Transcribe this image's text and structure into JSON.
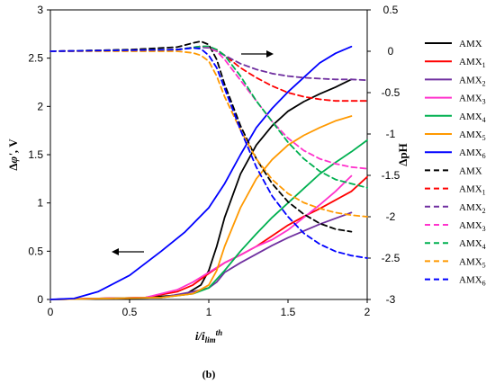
{
  "chart_data": {
    "type": "line",
    "caption": "(b)",
    "xlabel": "i/i_lim^th",
    "ylabel_left": "Δφ', V",
    "ylabel_right": "ΔpH",
    "xlim": [
      0,
      2
    ],
    "ylim_left": [
      0,
      3
    ],
    "ylim_right": [
      -3,
      0.5
    ],
    "x_ticks": [
      "0",
      "0.5",
      "1",
      "1.5",
      "2"
    ],
    "y_left_ticks": [
      "0",
      "0.5",
      "1",
      "1.5",
      "2",
      "2.5",
      "3"
    ],
    "y_right_ticks": [
      "0.5",
      "0",
      "-0.5",
      "-1",
      "-1.5",
      "-2",
      "-2.5",
      "-3"
    ],
    "legend_position": "right",
    "series": [
      {
        "name": "AMX",
        "sub": "",
        "axis": "left",
        "style": "solid",
        "color": "#000000",
        "x": [
          0,
          0.6,
          0.85,
          0.95,
          1.0,
          1.05,
          1.1,
          1.2,
          1.3,
          1.4,
          1.5,
          1.6,
          1.7,
          1.8,
          1.9
        ],
        "y": [
          0,
          0.02,
          0.05,
          0.15,
          0.3,
          0.55,
          0.85,
          1.3,
          1.6,
          1.8,
          1.95,
          2.05,
          2.13,
          2.2,
          2.28
        ]
      },
      {
        "name": "AMX",
        "sub": "1",
        "axis": "left",
        "style": "solid",
        "color": "#ff0000",
        "x": [
          0,
          0.6,
          0.8,
          0.9,
          1.0,
          1.1,
          1.2,
          1.3,
          1.4,
          1.5,
          1.6,
          1.7,
          1.8,
          1.9,
          2.0
        ],
        "y": [
          0,
          0.02,
          0.08,
          0.15,
          0.27,
          0.38,
          0.46,
          0.55,
          0.66,
          0.77,
          0.86,
          0.94,
          1.03,
          1.12,
          1.27
        ]
      },
      {
        "name": "AMX",
        "sub": "2",
        "axis": "left",
        "style": "solid",
        "color": "#7030a0",
        "x": [
          0,
          0.7,
          0.9,
          1.0,
          1.05,
          1.1,
          1.2,
          1.3,
          1.4,
          1.5,
          1.6,
          1.7,
          1.8,
          1.9
        ],
        "y": [
          0,
          0.02,
          0.08,
          0.12,
          0.18,
          0.28,
          0.38,
          0.47,
          0.56,
          0.64,
          0.71,
          0.78,
          0.84,
          0.9
        ]
      },
      {
        "name": "AMX",
        "sub": "3",
        "axis": "left",
        "style": "solid",
        "color": "#ff33cc",
        "x": [
          0,
          0.6,
          0.8,
          0.9,
          1.0,
          1.1,
          1.2,
          1.3,
          1.4,
          1.5,
          1.6,
          1.7,
          1.8,
          1.9
        ],
        "y": [
          0,
          0.02,
          0.1,
          0.18,
          0.28,
          0.38,
          0.46,
          0.55,
          0.62,
          0.72,
          0.85,
          0.98,
          1.12,
          1.28
        ]
      },
      {
        "name": "AMX",
        "sub": "4",
        "axis": "left",
        "style": "solid",
        "color": "#00b050",
        "x": [
          0,
          0.7,
          0.9,
          1.0,
          1.1,
          1.2,
          1.3,
          1.4,
          1.5,
          1.6,
          1.7,
          1.8,
          1.9,
          2.0
        ],
        "y": [
          0,
          0.02,
          0.06,
          0.12,
          0.3,
          0.5,
          0.68,
          0.85,
          1.0,
          1.15,
          1.3,
          1.42,
          1.53,
          1.65
        ]
      },
      {
        "name": "AMX",
        "sub": "5",
        "axis": "left",
        "style": "solid",
        "color": "#ff9900",
        "x": [
          0,
          0.7,
          0.9,
          1.0,
          1.05,
          1.1,
          1.2,
          1.3,
          1.4,
          1.5,
          1.6,
          1.7,
          1.8,
          1.9
        ],
        "y": [
          0,
          0.02,
          0.06,
          0.15,
          0.3,
          0.55,
          0.95,
          1.25,
          1.45,
          1.6,
          1.7,
          1.78,
          1.85,
          1.9
        ]
      },
      {
        "name": "AMX",
        "sub": "6",
        "axis": "left",
        "style": "solid",
        "color": "#0000ff",
        "x": [
          0,
          0.15,
          0.3,
          0.5,
          0.7,
          0.85,
          1.0,
          1.1,
          1.2,
          1.3,
          1.4,
          1.5,
          1.6,
          1.7,
          1.8,
          1.9
        ],
        "y": [
          0,
          0.01,
          0.08,
          0.25,
          0.5,
          0.7,
          0.95,
          1.2,
          1.5,
          1.78,
          1.98,
          2.15,
          2.3,
          2.45,
          2.55,
          2.62
        ]
      },
      {
        "name": "AMX",
        "sub": "",
        "axis": "right",
        "style": "dashed",
        "color": "#000000",
        "x": [
          0,
          0.5,
          0.8,
          0.9,
          0.95,
          1.0,
          1.05,
          1.1,
          1.2,
          1.3,
          1.4,
          1.5,
          1.6,
          1.7,
          1.8,
          1.9
        ],
        "y": [
          0,
          0.02,
          0.05,
          0.1,
          0.12,
          0.08,
          -0.1,
          -0.4,
          -0.9,
          -1.3,
          -1.6,
          -1.82,
          -1.97,
          -2.08,
          -2.15,
          -2.18
        ]
      },
      {
        "name": "AMX",
        "sub": "1",
        "axis": "right",
        "style": "dashed",
        "color": "#ff0000",
        "x": [
          0,
          0.8,
          0.95,
          1.0,
          1.05,
          1.1,
          1.2,
          1.3,
          1.4,
          1.5,
          1.6,
          1.7,
          1.8,
          1.9,
          2.0
        ],
        "y": [
          0,
          0.02,
          0.06,
          0.05,
          0.02,
          -0.05,
          -0.2,
          -0.32,
          -0.42,
          -0.5,
          -0.55,
          -0.58,
          -0.6,
          -0.6,
          -0.6
        ]
      },
      {
        "name": "AMX",
        "sub": "2",
        "axis": "right",
        "style": "dashed",
        "color": "#7030a0",
        "x": [
          0,
          0.8,
          0.95,
          1.0,
          1.05,
          1.1,
          1.2,
          1.3,
          1.4,
          1.5,
          1.6,
          1.7,
          1.8,
          1.9,
          2.0
        ],
        "y": [
          0,
          0.02,
          0.05,
          0.04,
          0.0,
          -0.05,
          -0.15,
          -0.22,
          -0.27,
          -0.3,
          -0.32,
          -0.33,
          -0.34,
          -0.34,
          -0.35
        ]
      },
      {
        "name": "AMX",
        "sub": "3",
        "axis": "right",
        "style": "dashed",
        "color": "#ff33cc",
        "x": [
          0,
          0.8,
          0.95,
          1.0,
          1.05,
          1.1,
          1.2,
          1.3,
          1.4,
          1.5,
          1.6,
          1.7,
          1.8,
          1.9,
          2.0
        ],
        "y": [
          0,
          0.02,
          0.06,
          0.05,
          0.0,
          -0.1,
          -0.35,
          -0.6,
          -0.85,
          -1.05,
          -1.2,
          -1.3,
          -1.36,
          -1.4,
          -1.42
        ]
      },
      {
        "name": "AMX",
        "sub": "4",
        "axis": "right",
        "style": "dashed",
        "color": "#00b050",
        "x": [
          0,
          0.8,
          0.95,
          1.0,
          1.05,
          1.1,
          1.2,
          1.3,
          1.4,
          1.5,
          1.6,
          1.7,
          1.8,
          1.9,
          2.0
        ],
        "y": [
          0,
          0.02,
          0.06,
          0.06,
          0.02,
          -0.05,
          -0.3,
          -0.6,
          -0.85,
          -1.1,
          -1.3,
          -1.45,
          -1.55,
          -1.6,
          -1.65
        ]
      },
      {
        "name": "AMX",
        "sub": "5",
        "axis": "right",
        "style": "dashed",
        "color": "#ff9900",
        "x": [
          0,
          0.8,
          0.9,
          0.95,
          1.0,
          1.05,
          1.1,
          1.2,
          1.3,
          1.4,
          1.5,
          1.6,
          1.7,
          1.8,
          1.9,
          2.0
        ],
        "y": [
          0,
          0.0,
          -0.02,
          -0.05,
          -0.12,
          -0.3,
          -0.55,
          -0.95,
          -1.3,
          -1.55,
          -1.72,
          -1.83,
          -1.9,
          -1.95,
          -1.98,
          -2.0
        ]
      },
      {
        "name": "AMX",
        "sub": "6",
        "axis": "right",
        "style": "dashed",
        "color": "#0000ff",
        "x": [
          0,
          0.8,
          0.9,
          0.95,
          1.0,
          1.05,
          1.1,
          1.2,
          1.3,
          1.4,
          1.5,
          1.6,
          1.7,
          1.8,
          1.9,
          2.0
        ],
        "y": [
          0,
          0.02,
          0.04,
          0.03,
          -0.05,
          -0.2,
          -0.45,
          -0.95,
          -1.4,
          -1.75,
          -2.0,
          -2.2,
          -2.33,
          -2.42,
          -2.47,
          -2.5
        ]
      }
    ]
  }
}
